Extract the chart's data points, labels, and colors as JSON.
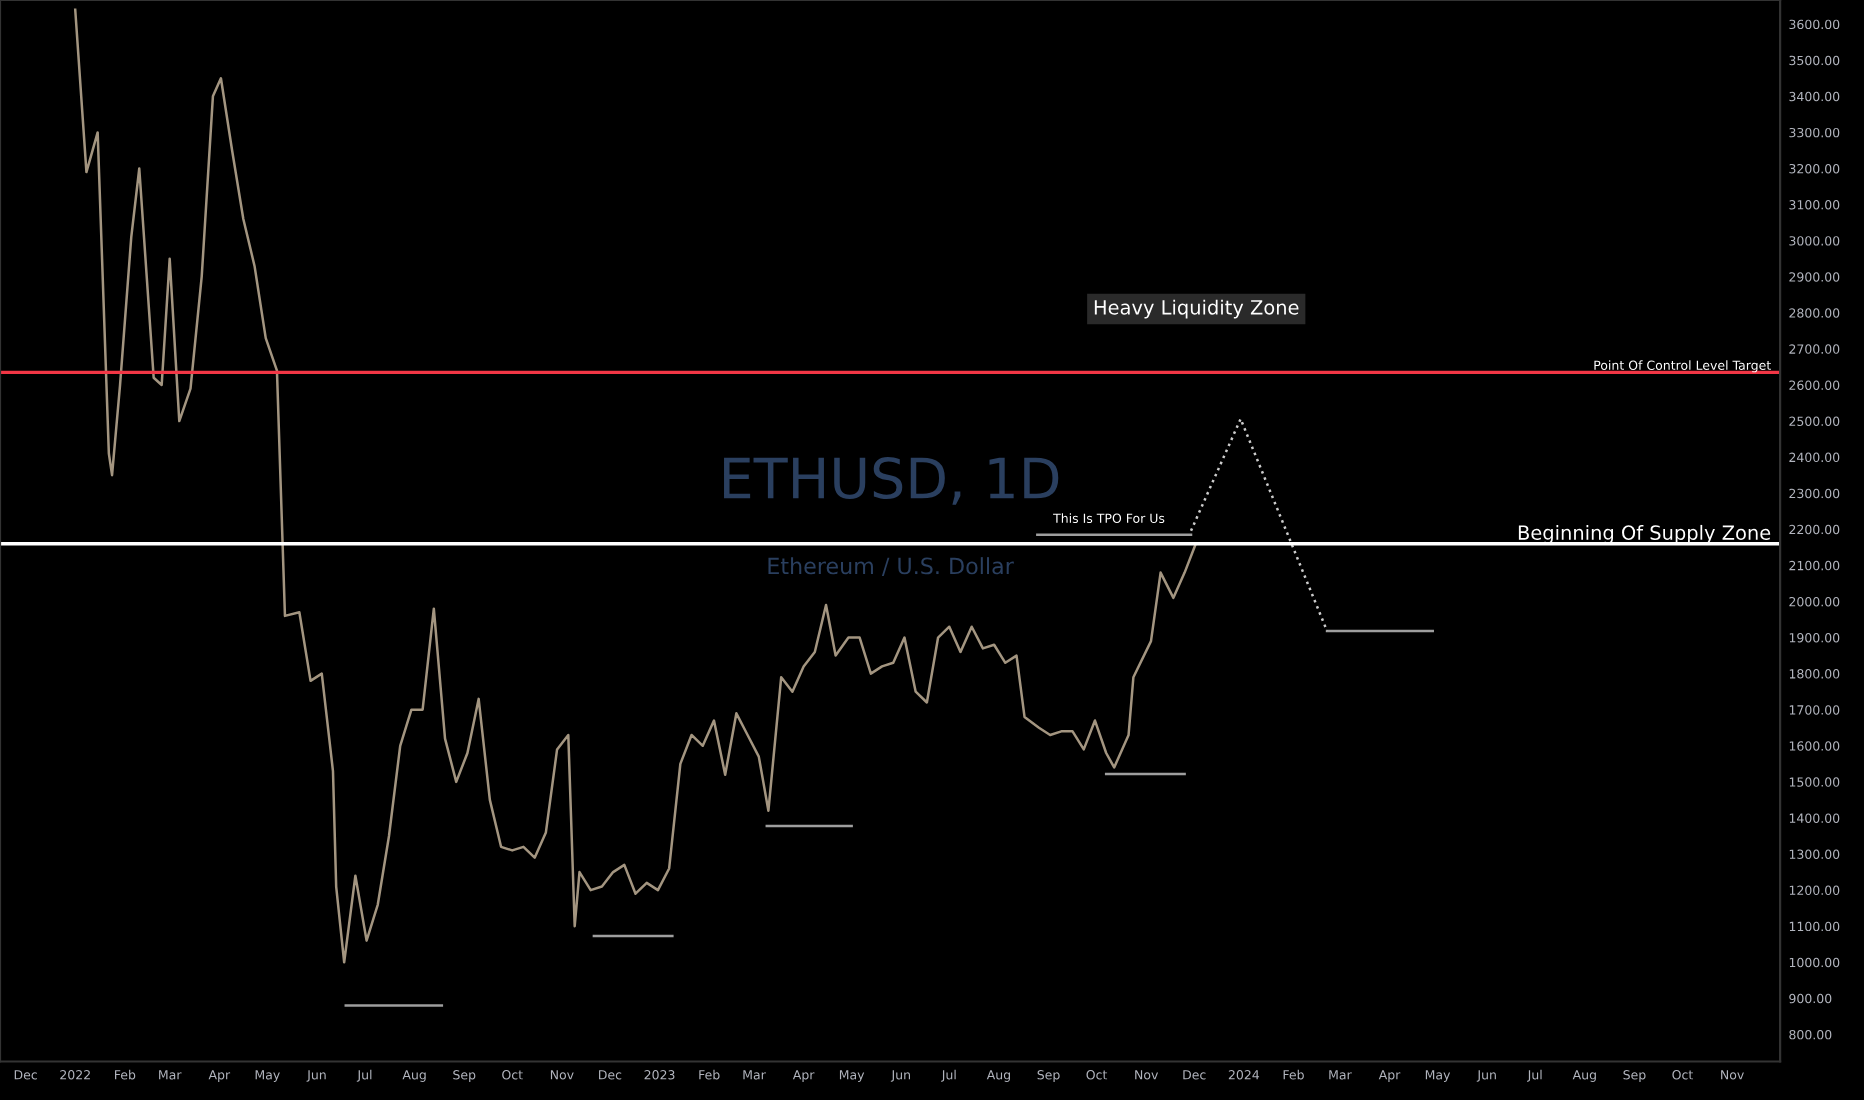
{
  "chart_data": {
    "type": "line",
    "title": "ETHUSD, 1D",
    "subtitle": "Ethereum / U.S. Dollar",
    "series": [
      {
        "color": "#a39580",
        "line_style": "solid",
        "x": [
          "2022-01-01",
          "2022-01-08",
          "2022-01-15",
          "2022-01-22",
          "2022-01-24",
          "2022-01-29",
          "2022-02-05",
          "2022-02-10",
          "2022-02-19",
          "2022-02-24",
          "2022-03-01",
          "2022-03-07",
          "2022-03-14",
          "2022-03-21",
          "2022-03-28",
          "2022-04-02",
          "2022-04-09",
          "2022-04-16",
          "2022-04-23",
          "2022-04-30",
          "2022-05-07",
          "2022-05-12",
          "2022-05-21",
          "2022-05-28",
          "2022-06-04",
          "2022-06-11",
          "2022-06-13",
          "2022-06-18",
          "2022-06-25",
          "2022-07-02",
          "2022-07-09",
          "2022-07-16",
          "2022-07-23",
          "2022-07-30",
          "2022-08-06",
          "2022-08-13",
          "2022-08-20",
          "2022-08-27",
          "2022-09-03",
          "2022-09-10",
          "2022-09-17",
          "2022-09-24",
          "2022-10-01",
          "2022-10-08",
          "2022-10-15",
          "2022-10-22",
          "2022-10-29",
          "2022-11-05",
          "2022-11-09",
          "2022-11-12",
          "2022-11-19",
          "2022-11-26",
          "2022-12-03",
          "2022-12-10",
          "2022-12-17",
          "2022-12-24",
          "2022-12-31",
          "2023-01-07",
          "2023-01-14",
          "2023-01-21",
          "2023-01-28",
          "2023-02-04",
          "2023-02-11",
          "2023-02-18",
          "2023-02-25",
          "2023-03-04",
          "2023-03-10",
          "2023-03-18",
          "2023-03-25",
          "2023-04-01",
          "2023-04-08",
          "2023-04-15",
          "2023-04-21",
          "2023-04-29",
          "2023-05-06",
          "2023-05-13",
          "2023-05-20",
          "2023-05-27",
          "2023-06-03",
          "2023-06-10",
          "2023-06-17",
          "2023-06-24",
          "2023-07-01",
          "2023-07-08",
          "2023-07-15",
          "2023-07-22",
          "2023-07-29",
          "2023-08-05",
          "2023-08-12",
          "2023-08-17",
          "2023-08-26",
          "2023-09-02",
          "2023-09-09",
          "2023-09-16",
          "2023-09-23",
          "2023-09-30",
          "2023-10-07",
          "2023-10-12",
          "2023-10-21",
          "2023-10-24",
          "2023-11-04",
          "2023-11-10",
          "2023-11-18",
          "2023-11-25",
          "2023-12-02"
        ],
        "values": [
          3640,
          3190,
          3300,
          2410,
          2350,
          2600,
          3010,
          3200,
          2620,
          2600,
          2950,
          2500,
          2590,
          2900,
          3400,
          3450,
          3250,
          3060,
          2930,
          2730,
          2640,
          1960,
          1970,
          1780,
          1800,
          1530,
          1210,
          1000,
          1240,
          1060,
          1160,
          1350,
          1600,
          1700,
          1700,
          1980,
          1620,
          1500,
          1580,
          1730,
          1450,
          1320,
          1310,
          1320,
          1290,
          1360,
          1590,
          1630,
          1100,
          1250,
          1200,
          1210,
          1250,
          1270,
          1190,
          1220,
          1200,
          1260,
          1550,
          1630,
          1600,
          1670,
          1520,
          1690,
          1630,
          1570,
          1420,
          1790,
          1750,
          1820,
          1860,
          1990,
          1850,
          1900,
          1900,
          1800,
          1820,
          1830,
          1900,
          1750,
          1720,
          1900,
          1930,
          1860,
          1930,
          1870,
          1880,
          1830,
          1850,
          1680,
          1650,
          1630,
          1640,
          1640,
          1590,
          1670,
          1580,
          1540,
          1630,
          1790,
          1890,
          2080,
          2010,
          2080,
          2160
        ]
      },
      {
        "color": "#9e9e9e",
        "x": [
          "2022-06-19",
          "2022-08-18"
        ],
        "values": [
          880,
          880
        ]
      },
      {
        "color": "#9e9e9e",
        "x": [
          "2022-11-21",
          "2023-01-09"
        ],
        "values": [
          1073,
          1073
        ]
      },
      {
        "color": "#9e9e9e",
        "x": [
          "2023-03-09",
          "2023-05-01"
        ],
        "values": [
          1378,
          1378
        ]
      },
      {
        "color": "#9e9e9e",
        "x": [
          "2023-10-07",
          "2023-11-25"
        ],
        "values": [
          1522,
          1522
        ]
      },
      {
        "color": "#9e9e9e",
        "x": [
          "2024-02-22",
          "2024-04-28"
        ],
        "values": [
          1918,
          1918
        ]
      },
      {
        "color": "#9e9e9e",
        "x": [
          "2023-08-25",
          "2023-11-29"
        ],
        "values": [
          2185,
          2185
        ]
      },
      {
        "color": "#cccccc",
        "line_style": "dotted",
        "x": [
          "2023-11-29",
          "2023-12-30",
          "2024-02-22"
        ],
        "values": [
          2196,
          2506,
          1918
        ]
      }
    ],
    "xlim": [
      "2021-11-15",
      "2024-12-01"
    ],
    "xticks": [
      {
        "value": "2021-12-01",
        "label": "Dec"
      },
      {
        "value": "2022-01-01",
        "label": "2022"
      },
      {
        "value": "2022-02-01",
        "label": "Feb"
      },
      {
        "value": "2022-03-01",
        "label": "Mar"
      },
      {
        "value": "2022-04-01",
        "label": "Apr"
      },
      {
        "value": "2022-05-01",
        "label": "May"
      },
      {
        "value": "2022-06-01",
        "label": "Jun"
      },
      {
        "value": "2022-07-01",
        "label": "Jul"
      },
      {
        "value": "2022-08-01",
        "label": "Aug"
      },
      {
        "value": "2022-09-01",
        "label": "Sep"
      },
      {
        "value": "2022-10-01",
        "label": "Oct"
      },
      {
        "value": "2022-11-01",
        "label": "Nov"
      },
      {
        "value": "2022-12-01",
        "label": "Dec"
      },
      {
        "value": "2023-01-01",
        "label": "2023"
      },
      {
        "value": "2023-02-01",
        "label": "Feb"
      },
      {
        "value": "2023-03-01",
        "label": "Mar"
      },
      {
        "value": "2023-04-01",
        "label": "Apr"
      },
      {
        "value": "2023-05-01",
        "label": "May"
      },
      {
        "value": "2023-06-01",
        "label": "Jun"
      },
      {
        "value": "2023-07-01",
        "label": "Jul"
      },
      {
        "value": "2023-08-01",
        "label": "Aug"
      },
      {
        "value": "2023-09-01",
        "label": "Sep"
      },
      {
        "value": "2023-10-01",
        "label": "Oct"
      },
      {
        "value": "2023-11-01",
        "label": "Nov"
      },
      {
        "value": "2023-12-01",
        "label": "Dec"
      },
      {
        "value": "2024-01-01",
        "label": "2024"
      },
      {
        "value": "2024-02-01",
        "label": "Feb"
      },
      {
        "value": "2024-03-01",
        "label": "Mar"
      },
      {
        "value": "2024-04-01",
        "label": "Apr"
      },
      {
        "value": "2024-05-01",
        "label": "May"
      },
      {
        "value": "2024-06-01",
        "label": "Jun"
      },
      {
        "value": "2024-07-01",
        "label": "Jul"
      },
      {
        "value": "2024-08-01",
        "label": "Aug"
      },
      {
        "value": "2024-09-01",
        "label": "Sep"
      },
      {
        "value": "2024-10-01",
        "label": "Oct"
      },
      {
        "value": "2024-11-01",
        "label": "Nov"
      }
    ],
    "ylim": [
      725,
      3667
    ],
    "yticks": [
      {
        "value": 800,
        "label": "800.00"
      },
      {
        "value": 900,
        "label": "900.00"
      },
      {
        "value": 1000,
        "label": "1000.00"
      },
      {
        "value": 1100,
        "label": "1100.00"
      },
      {
        "value": 1200,
        "label": "1200.00"
      },
      {
        "value": 1300,
        "label": "1300.00"
      },
      {
        "value": 1400,
        "label": "1400.00"
      },
      {
        "value": 1500,
        "label": "1500.00"
      },
      {
        "value": 1600,
        "label": "1600.00"
      },
      {
        "value": 1700,
        "label": "1700.00"
      },
      {
        "value": 1800,
        "label": "1800.00"
      },
      {
        "value": 1900,
        "label": "1900.00"
      },
      {
        "value": 2000,
        "label": "2000.00"
      },
      {
        "value": 2100,
        "label": "2100.00"
      },
      {
        "value": 2200,
        "label": "2200.00"
      },
      {
        "value": 2300,
        "label": "2300.00"
      },
      {
        "value": 2400,
        "label": "2400.00"
      },
      {
        "value": 2500,
        "label": "2500.00"
      },
      {
        "value": 2600,
        "label": "2600.00"
      },
      {
        "value": 2700,
        "label": "2700.00"
      },
      {
        "value": 2800,
        "label": "2800.00"
      },
      {
        "value": 2900,
        "label": "2900.00"
      },
      {
        "value": 3000,
        "label": "3000.00"
      },
      {
        "value": 3100,
        "label": "3100.00"
      },
      {
        "value": 3200,
        "label": "3200.00"
      },
      {
        "value": 3300,
        "label": "3300.00"
      },
      {
        "value": 3400,
        "label": "3400.00"
      },
      {
        "value": 3500,
        "label": "3500.00"
      },
      {
        "value": 3600,
        "label": "3600.00"
      }
    ],
    "ref_lines": [
      {
        "axis": "y",
        "value": 2635,
        "label": "Point Of Control Level Target",
        "color": "#f23645"
      },
      {
        "axis": "y",
        "value": 2160,
        "label": "Beginning Of Supply Zone",
        "color": "#ffffff"
      }
    ],
    "annotations": [
      "Heavy Liquidity Zone",
      "This Is TPO For Us"
    ],
    "grid": false,
    "legend": false
  }
}
